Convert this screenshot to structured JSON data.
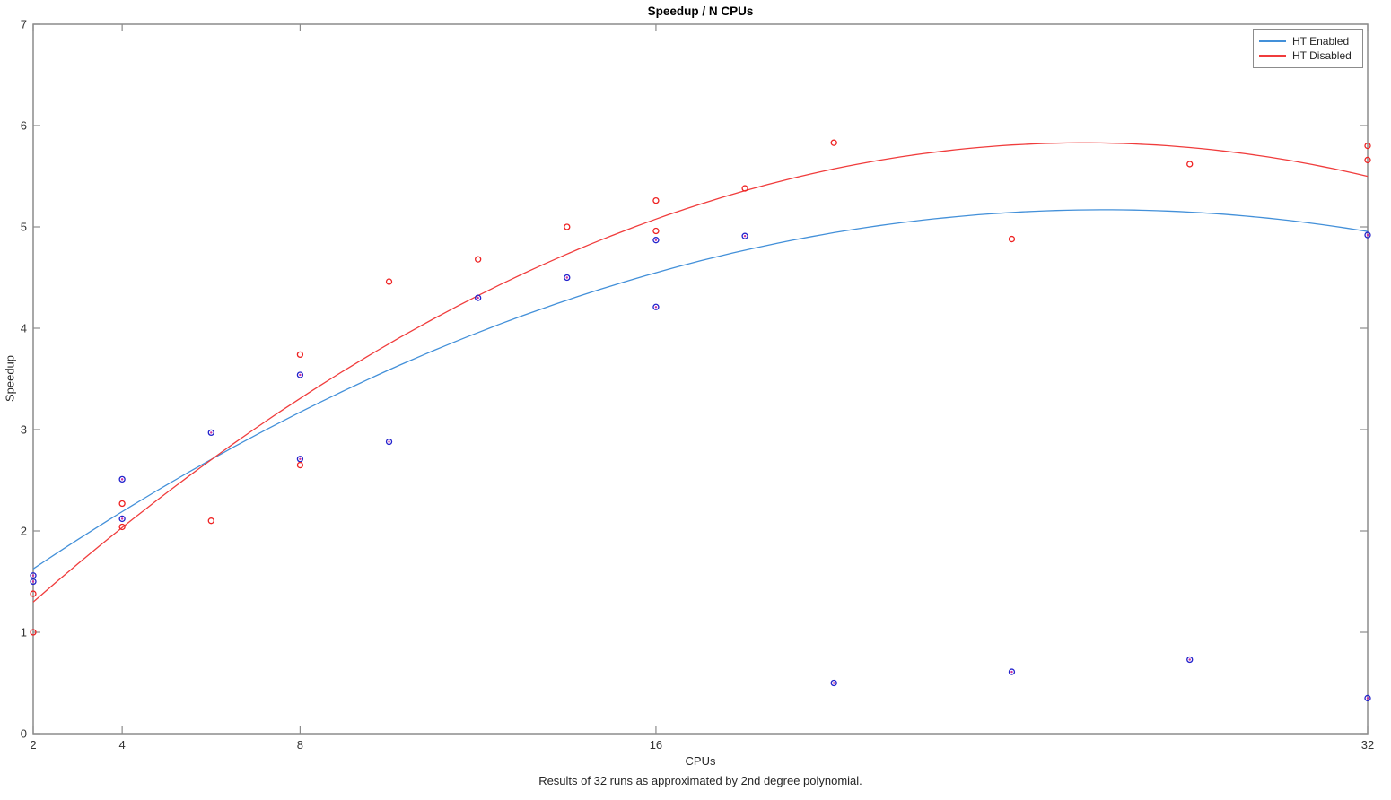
{
  "chart": {
    "title": "Speedup / N CPUs",
    "xlabel": "CPUs",
    "ylabel": "Speedup",
    "caption": "Results of 32 runs as approximated by 2nd degree polynomial."
  },
  "colors": {
    "axis": "#8c8c8c",
    "tick_text": "#333333",
    "background": "#ffffff",
    "blue_line": "#4390d9",
    "blue_marker": "#2222cc",
    "blue_marker_center": "#cc2fa0",
    "red_line": "#f03c3c",
    "red_marker": "#ee2222"
  },
  "chart_data": {
    "type": "scatter",
    "title": "Speedup / N CPUs",
    "xlabel": "CPUs",
    "ylabel": "Speedup",
    "grid": false,
    "x_axis": {
      "min": 2,
      "max": 32,
      "scale": "linear",
      "ticks": [
        2,
        4,
        8,
        16,
        32
      ]
    },
    "y_axis": {
      "min": 0,
      "max": 7,
      "scale": "linear",
      "ticks": [
        0,
        1,
        2,
        3,
        4,
        5,
        6,
        7
      ]
    },
    "legend": {
      "position": "top-right",
      "entries": [
        "HT Enabled",
        "HT Disabled"
      ]
    },
    "series": [
      {
        "name": "HT Enabled",
        "line_color": "#4390d9",
        "marker": "circle-dot",
        "marker_color": "#2222cc",
        "marker_center_color": "#cc2fa0",
        "fit": {
          "type": "poly2",
          "degree": 2,
          "coeffs": [
            -0.00611,
            0.3187,
            1.013
          ]
        },
        "points": [
          [
            2,
            1.56
          ],
          [
            2,
            1.5
          ],
          [
            4,
            2.51
          ],
          [
            4,
            2.12
          ],
          [
            6,
            2.97
          ],
          [
            8,
            3.54
          ],
          [
            8,
            2.71
          ],
          [
            10,
            2.88
          ],
          [
            12,
            4.3
          ],
          [
            14,
            4.5
          ],
          [
            16,
            4.87
          ],
          [
            16,
            4.21
          ],
          [
            18,
            4.91
          ],
          [
            20,
            0.5
          ],
          [
            24,
            0.61
          ],
          [
            28,
            0.73
          ],
          [
            32,
            4.92
          ],
          [
            32,
            0.35
          ]
        ]
      },
      {
        "name": "HT Disabled",
        "line_color": "#f03c3c",
        "marker": "circle",
        "marker_color": "#ee2222",
        "fit": {
          "type": "poly2",
          "degree": 2,
          "coeffs": [
            -0.008117,
            0.416,
            0.499
          ]
        },
        "points": [
          [
            2,
            1.38
          ],
          [
            2,
            1.0
          ],
          [
            4,
            2.27
          ],
          [
            4,
            2.04
          ],
          [
            6,
            2.1
          ],
          [
            8,
            3.74
          ],
          [
            8,
            2.65
          ],
          [
            10,
            4.46
          ],
          [
            12,
            4.68
          ],
          [
            14,
            5.0
          ],
          [
            16,
            5.26
          ],
          [
            16,
            4.96
          ],
          [
            18,
            5.38
          ],
          [
            20,
            5.83
          ],
          [
            24,
            4.88
          ],
          [
            28,
            5.62
          ],
          [
            32,
            5.8
          ],
          [
            32,
            5.66
          ]
        ]
      }
    ]
  }
}
